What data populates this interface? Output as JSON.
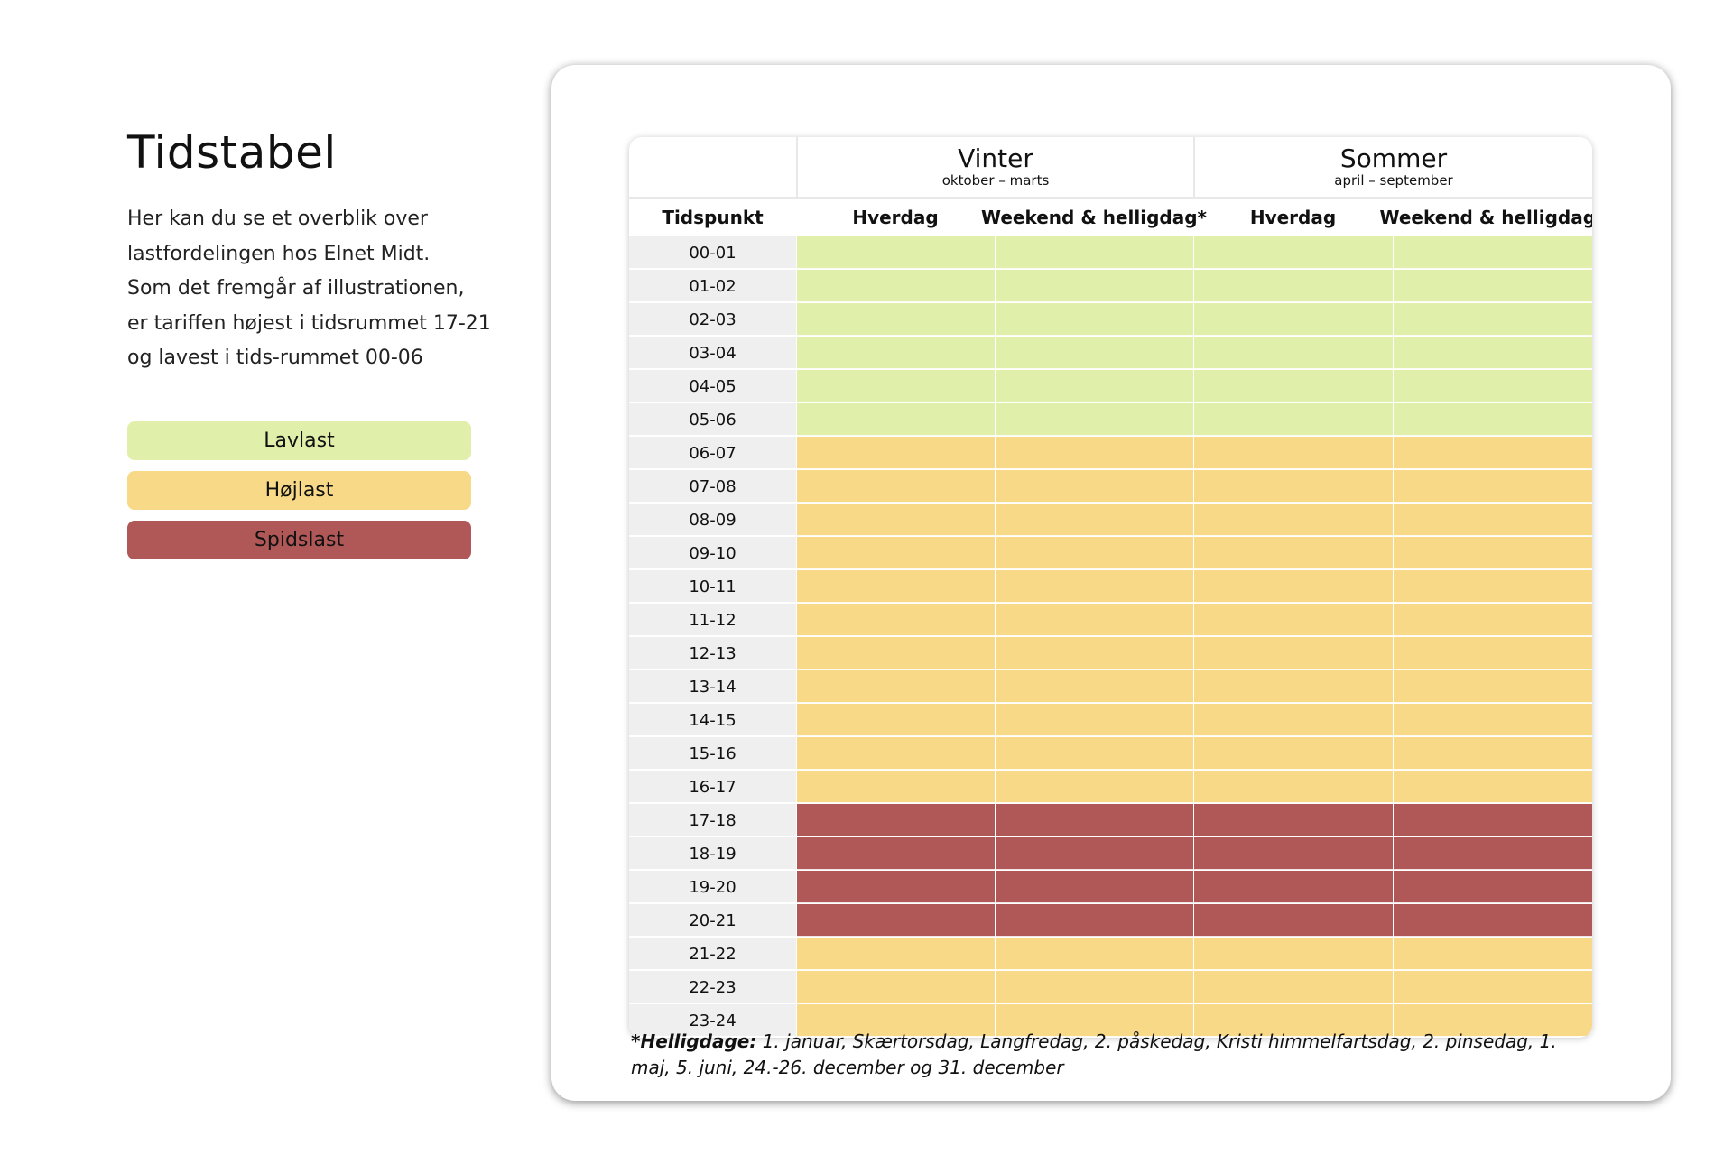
{
  "page": {
    "title": "Tidstabel",
    "intro_lines": [
      "Her kan du se et overblik over",
      "lastfordelingen hos Elnet Midt.",
      "Som det fremgår af illustrationen,",
      "er tariffen højest i tidsrummet 17-21",
      "og lavest i tids-rummet 00-06"
    ]
  },
  "legend": [
    {
      "label": "Lavlast",
      "color": "#e0efaa"
    },
    {
      "label": "Højlast",
      "color": "#f7d987"
    },
    {
      "label": "Spidslast",
      "color": "#b05757"
    }
  ],
  "table": {
    "seasons": [
      {
        "name": "Vinter",
        "range": "oktober – marts"
      },
      {
        "name": "Sommer",
        "range": "april – september"
      }
    ],
    "columns": [
      "Tidspunkt",
      "Hverdag",
      "Weekend & helligdag*",
      "Hverdag",
      "Weekend & helligdag*"
    ],
    "rows": [
      {
        "time": "00-01",
        "level": "Lavlast"
      },
      {
        "time": "01-02",
        "level": "Lavlast"
      },
      {
        "time": "02-03",
        "level": "Lavlast"
      },
      {
        "time": "03-04",
        "level": "Lavlast"
      },
      {
        "time": "04-05",
        "level": "Lavlast"
      },
      {
        "time": "05-06",
        "level": "Lavlast"
      },
      {
        "time": "06-07",
        "level": "Højlast"
      },
      {
        "time": "07-08",
        "level": "Højlast"
      },
      {
        "time": "08-09",
        "level": "Højlast"
      },
      {
        "time": "09-10",
        "level": "Højlast"
      },
      {
        "time": "10-11",
        "level": "Højlast"
      },
      {
        "time": "11-12",
        "level": "Højlast"
      },
      {
        "time": "12-13",
        "level": "Højlast"
      },
      {
        "time": "13-14",
        "level": "Højlast"
      },
      {
        "time": "14-15",
        "level": "Højlast"
      },
      {
        "time": "15-16",
        "level": "Højlast"
      },
      {
        "time": "16-17",
        "level": "Højlast"
      },
      {
        "time": "17-18",
        "level": "Spidslast"
      },
      {
        "time": "18-19",
        "level": "Spidslast"
      },
      {
        "time": "19-20",
        "level": "Spidslast"
      },
      {
        "time": "20-21",
        "level": "Spidslast"
      },
      {
        "time": "21-22",
        "level": "Højlast"
      },
      {
        "time": "22-23",
        "level": "Højlast"
      },
      {
        "time": "23-24",
        "level": "Højlast"
      }
    ]
  },
  "footnote": {
    "label": "*Helligdage:",
    "text": " 1. januar, Skærtorsdag, Langfredag, 2. påskedag, Kristi himmelfartsdag, 2. pinsedag, 1. maj, 5. juni, 24.-26. december og 31. december"
  }
}
